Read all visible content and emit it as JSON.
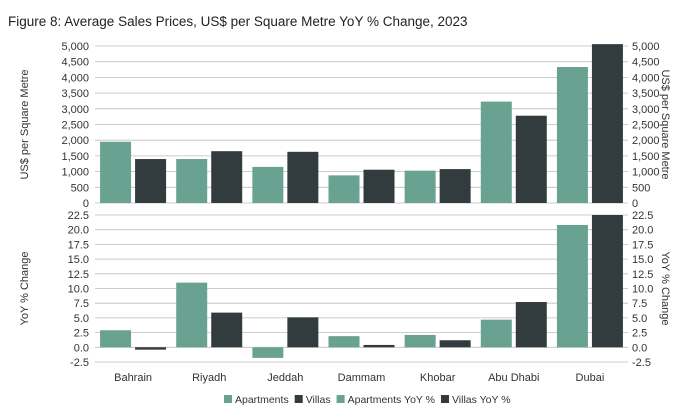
{
  "title": "Figure 8:  Average Sales Prices, US$ per Square Metre YoY % Change, 2023",
  "colors": {
    "apartments": "#6aa292",
    "villas": "#323c3f",
    "grid": "#bdbdbd",
    "axis_text": "#333333"
  },
  "legend": {
    "items": [
      {
        "label": "Apartments",
        "color": "#6aa292"
      },
      {
        "label": "Villas",
        "color": "#323c3f"
      },
      {
        "label": "Apartments YoY %",
        "color": "#6aa292"
      },
      {
        "label": "Villas YoY %",
        "color": "#323c3f"
      }
    ],
    "placement": "bottom"
  },
  "chart_data": [
    {
      "type": "bar",
      "title": "",
      "categories": [
        "Bahrain",
        "Riyadh",
        "Jeddah",
        "Dammam",
        "Khobar",
        "Abu Dhabi",
        "Dubai"
      ],
      "series": [
        {
          "name": "Apartments",
          "values": [
            1950,
            1400,
            1150,
            880,
            1030,
            3230,
            4330
          ]
        },
        {
          "name": "Villas",
          "values": [
            1400,
            1650,
            1630,
            1060,
            1080,
            2780,
            5060
          ]
        }
      ],
      "ylabel": "US$ per Square Metre",
      "ylabel_right": "US$ per Square Metre",
      "ylim": [
        0,
        5000
      ],
      "yticks": [
        "5,000",
        "4,500",
        "4,000",
        "3,500",
        "3,000",
        "2,500",
        "2,000",
        "1,500",
        "1,000",
        "500",
        "0"
      ],
      "ytick_values": [
        5000,
        4500,
        4000,
        3500,
        3000,
        2500,
        2000,
        1500,
        1000,
        500,
        0
      ],
      "grid": true
    },
    {
      "type": "bar",
      "title": "",
      "categories": [
        "Bahrain",
        "Riyadh",
        "Jeddah",
        "Dammam",
        "Khobar",
        "Abu Dhabi",
        "Dubai"
      ],
      "series": [
        {
          "name": "Apartments YoY %",
          "values": [
            2.9,
            11.0,
            -1.8,
            1.9,
            2.1,
            4.7,
            20.8
          ]
        },
        {
          "name": "Villas YoY %",
          "values": [
            -0.4,
            5.9,
            5.1,
            0.4,
            1.2,
            7.7,
            22.5
          ]
        }
      ],
      "ylabel": "YoY % Change",
      "ylabel_right": "YoY % Change",
      "ylim": [
        -2.5,
        22.5
      ],
      "yticks": [
        "22.5",
        "20.0",
        "17.5",
        "15.0",
        "12.5",
        "10.0",
        "7.5",
        "5.0",
        "2.5",
        "0.0",
        "-2.5"
      ],
      "ytick_values": [
        22.5,
        20.0,
        17.5,
        15.0,
        12.5,
        10.0,
        7.5,
        5.0,
        2.5,
        0.0,
        -2.5
      ],
      "grid": true
    }
  ]
}
